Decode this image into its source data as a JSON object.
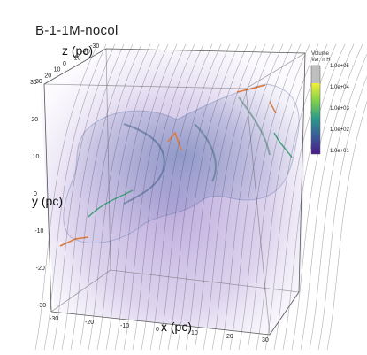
{
  "title": "B-1-1M-nocol",
  "axes": {
    "x_label": "x (pc)",
    "y_label": "y (pc)",
    "z_label": "z (pc)",
    "x_ticks": [
      "-30",
      "-20",
      "-10",
      "0",
      "10",
      "20",
      "30"
    ],
    "y_ticks": [
      "30",
      "20",
      "10",
      "0",
      "-10",
      "-20",
      "-30"
    ],
    "z_ticks": [
      "-30",
      "-20",
      "-10",
      "0",
      "10",
      "20",
      "30"
    ]
  },
  "legend": {
    "title_line1": "Volume",
    "title_line2": "Var: n H",
    "ticks": [
      "1.0e+05",
      "1.0e+04",
      "1.0e+03",
      "1.0e+02",
      "1.0e+01"
    ]
  },
  "colors": {
    "haze": "#b9a6d9",
    "cloud": "#6e7fb8",
    "filament_hot": "#e07a3a",
    "filament_mid": "#3fa07a",
    "field_line": "#4a4a5a"
  }
}
